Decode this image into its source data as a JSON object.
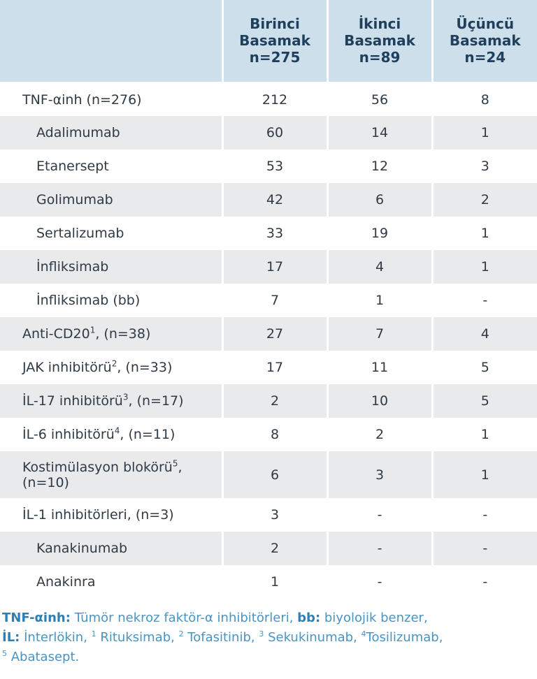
{
  "header": {
    "col1": "Birinci\nBasamak\nn=275",
    "col2": "İkinci\nBasamak\nn=89",
    "col3": "Üçüncü\nBasamak\nn=24"
  },
  "rows": [
    {
      "label": "TNF-αinh (n=276)",
      "sup": "",
      "suffix": "",
      "v1": "212",
      "v2": "56",
      "v3": "8"
    },
    {
      "label": "Adalimumab",
      "sup": "",
      "suffix": "",
      "v1": "60",
      "v2": "14",
      "v3": "1"
    },
    {
      "label": "Etanersept",
      "sup": "",
      "suffix": "",
      "v1": "53",
      "v2": "12",
      "v3": "3"
    },
    {
      "label": "Golimumab",
      "sup": "",
      "suffix": "",
      "v1": "42",
      "v2": "6",
      "v3": "2"
    },
    {
      "label": "Sertalizumab",
      "sup": "",
      "suffix": "",
      "v1": "33",
      "v2": "19",
      "v3": "1"
    },
    {
      "label": "İnfliksimab",
      "sup": "",
      "suffix": "",
      "v1": "17",
      "v2": "4",
      "v3": "1"
    },
    {
      "label": "İnfliksimab (bb)",
      "sup": "",
      "suffix": "",
      "v1": "7",
      "v2": "1",
      "v3": "-"
    },
    {
      "label": "Anti-CD20",
      "sup": "1",
      "suffix": ", (n=38)",
      "v1": "27",
      "v2": "7",
      "v3": "4"
    },
    {
      "label": "JAK inhibitörü",
      "sup": "2",
      "suffix": ", (n=33)",
      "v1": "17",
      "v2": "11",
      "v3": "5"
    },
    {
      "label": "İL-17 inhibitörü",
      "sup": "3",
      "suffix": ", (n=17)",
      "v1": "2",
      "v2": "10",
      "v3": "5"
    },
    {
      "label": "İL-6 inhibitörü",
      "sup": "4",
      "suffix": ", (n=11)",
      "v1": "8",
      "v2": "2",
      "v3": "1"
    },
    {
      "label": "Kostimülasyon blokörü",
      "sup": "5",
      "suffix": ",\n(n=10)",
      "v1": "6",
      "v2": "3",
      "v3": "1"
    },
    {
      "label": "İL-1 inhibitörleri, (n=3)",
      "sup": "",
      "suffix": "",
      "v1": "3",
      "v2": "-",
      "v3": "-"
    },
    {
      "label": "Kanakinumab",
      "sup": "",
      "suffix": "",
      "v1": "2",
      "v2": "-",
      "v3": "-"
    },
    {
      "label": "Anakinra",
      "sup": "",
      "suffix": "",
      "v1": "1",
      "v2": "-",
      "v3": "-"
    }
  ],
  "footnote": {
    "tnf_term": "TNF-αinh:",
    "tnf_def": " Tümör nekroz faktör-α inhibitörleri, ",
    "bb_term": "bb:",
    "bb_def": " biyolojik benzer,",
    "il_term": "İL:",
    "il_def": " İnterlökin, ",
    "n1": "1",
    "t1": " Rituksimab, ",
    "n2": "2",
    "t2": " Tofasitinib, ",
    "n3": "3",
    "t3": " Sekukinumab, ",
    "n4": "4",
    "t4": "Tosilizumab,",
    "n5": "5",
    "t5": " Abatasept."
  }
}
